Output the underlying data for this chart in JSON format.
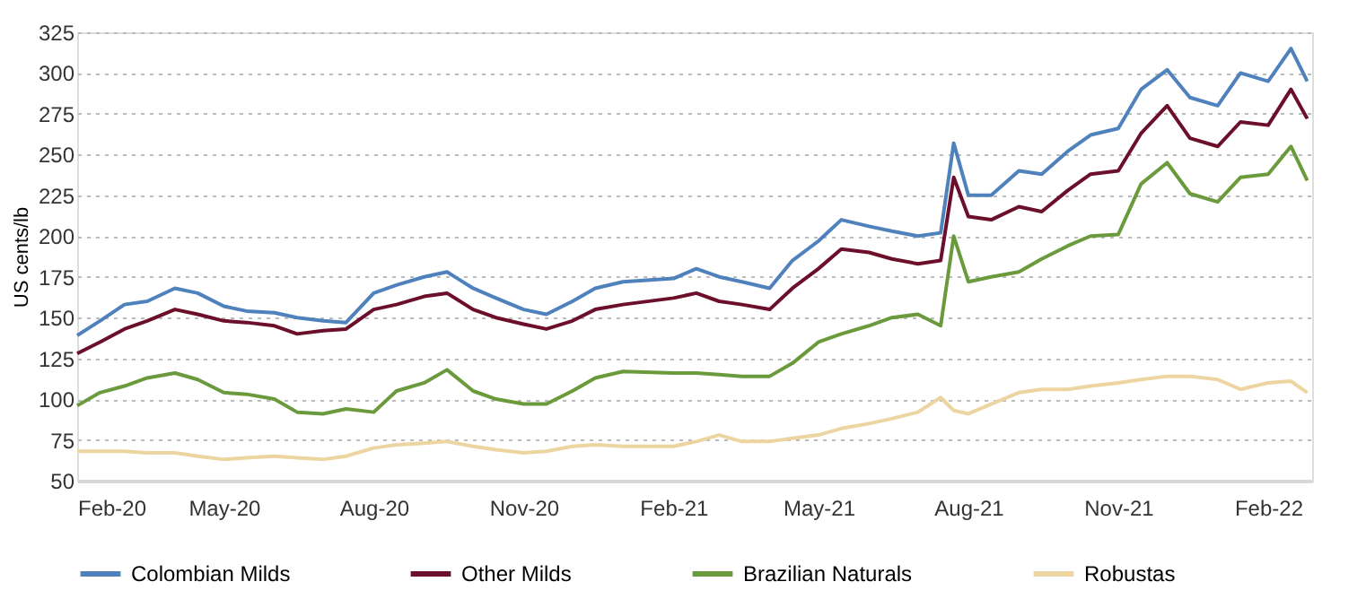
{
  "chart_data": {
    "type": "line",
    "ylabel": "US cents/lb",
    "x": [
      "2020-02-01",
      "2020-02-15",
      "2020-03-01",
      "2020-03-15",
      "2020-04-01",
      "2020-04-15",
      "2020-05-01",
      "2020-05-15",
      "2020-06-01",
      "2020-06-15",
      "2020-07-01",
      "2020-07-15",
      "2020-08-01",
      "2020-08-15",
      "2020-09-01",
      "2020-09-15",
      "2020-10-01",
      "2020-10-15",
      "2020-11-01",
      "2020-11-15",
      "2020-12-01",
      "2020-12-15",
      "2021-01-01",
      "2021-02-01",
      "2021-02-15",
      "2021-03-01",
      "2021-03-15",
      "2021-04-01",
      "2021-04-15",
      "2021-05-01",
      "2021-05-15",
      "2021-06-01",
      "2021-06-15",
      "2021-07-01",
      "2021-07-15",
      "2021-07-23",
      "2021-08-01",
      "2021-08-15",
      "2021-09-01",
      "2021-09-15",
      "2021-10-01",
      "2021-10-15",
      "2021-11-01",
      "2021-11-15",
      "2021-12-01",
      "2021-12-15",
      "2022-01-01",
      "2022-01-15",
      "2022-02-01",
      "2022-02-15",
      "2022-02-25"
    ],
    "series": [
      {
        "name": "Colombian Milds",
        "color": "#4f81bd",
        "values": [
          139,
          148,
          158,
          160,
          168,
          165,
          157,
          154,
          153,
          150,
          148,
          147,
          165,
          170,
          175,
          178,
          168,
          162,
          155,
          152,
          160,
          168,
          172,
          174,
          180,
          175,
          172,
          168,
          185,
          197,
          210,
          206,
          203,
          200,
          202,
          257,
          225,
          225,
          240,
          238,
          252,
          262,
          266,
          290,
          302,
          285,
          280,
          300,
          295,
          315,
          295
        ]
      },
      {
        "name": "Other Milds",
        "color": "#6b0f2a",
        "values": [
          128,
          135,
          143,
          148,
          155,
          152,
          148,
          147,
          145,
          140,
          142,
          143,
          155,
          158,
          163,
          165,
          155,
          150,
          146,
          143,
          148,
          155,
          158,
          162,
          165,
          160,
          158,
          155,
          168,
          180,
          192,
          190,
          186,
          183,
          185,
          236,
          212,
          210,
          218,
          215,
          228,
          238,
          240,
          263,
          280,
          260,
          255,
          270,
          268,
          290,
          272
        ]
      },
      {
        "name": "Brazilian Naturals",
        "color": "#6a9a3c",
        "values": [
          96,
          104,
          108,
          113,
          116,
          112,
          104,
          103,
          100,
          92,
          91,
          94,
          92,
          105,
          110,
          118,
          105,
          100,
          97,
          97,
          105,
          113,
          117,
          116,
          116,
          115,
          114,
          114,
          122,
          135,
          140,
          145,
          150,
          152,
          145,
          200,
          172,
          175,
          178,
          186,
          194,
          200,
          201,
          232,
          245,
          226,
          221,
          236,
          238,
          255,
          234
        ]
      },
      {
        "name": "Robustas",
        "color": "#ecd5a0",
        "values": [
          68,
          68,
          68,
          67,
          67,
          65,
          63,
          64,
          65,
          64,
          63,
          65,
          70,
          72,
          73,
          74,
          71,
          69,
          67,
          68,
          71,
          72,
          71,
          71,
          74,
          78,
          74,
          74,
          76,
          78,
          82,
          85,
          88,
          92,
          101,
          93,
          91,
          97,
          104,
          106,
          106,
          108,
          110,
          112,
          114,
          114,
          112,
          106,
          110,
          111,
          104
        ]
      }
    ],
    "xlim": [
      "2020-02-01",
      "2022-02-28"
    ],
    "xticks": [
      {
        "value": "2020-02-01",
        "label": "Feb-20"
      },
      {
        "value": "2020-05-01",
        "label": "May-20"
      },
      {
        "value": "2020-08-01",
        "label": "Aug-20"
      },
      {
        "value": "2020-11-01",
        "label": "Nov-20"
      },
      {
        "value": "2021-02-01",
        "label": "Feb-21"
      },
      {
        "value": "2021-05-01",
        "label": "May-21"
      },
      {
        "value": "2021-08-01",
        "label": "Aug-21"
      },
      {
        "value": "2021-11-01",
        "label": "Nov-21"
      },
      {
        "value": "2022-02-01",
        "label": "Feb-22"
      }
    ],
    "ylim": [
      50,
      325
    ],
    "yticks": [
      50,
      75,
      100,
      125,
      150,
      175,
      200,
      225,
      250,
      275,
      300,
      325
    ],
    "grid": "y",
    "legend": "bottom",
    "line_style": "solid",
    "marker": "none"
  }
}
